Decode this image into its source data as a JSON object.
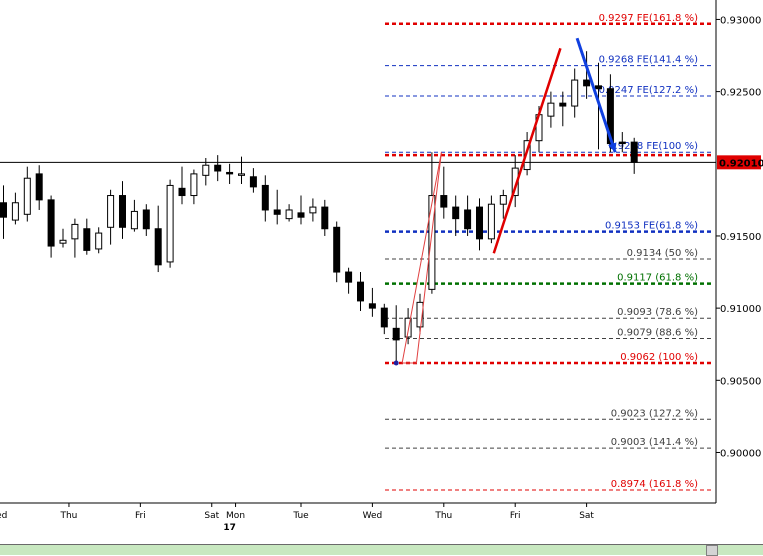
{
  "chart_data": {
    "type": "candlestick",
    "y_axis": {
      "min": 0.8965,
      "max": 0.931,
      "ticks": [
        "0.93000",
        "0.92500",
        "0.91500",
        "0.91000",
        "0.90500",
        "0.90000"
      ],
      "tick_values": [
        0.93,
        0.925,
        0.915,
        0.91,
        0.905,
        0.9
      ],
      "current_price": 0.9201,
      "current_price_label": "0.92010",
      "current_price_color": "#e00000"
    },
    "x_axis": {
      "labels": [
        "Wed",
        "Thu",
        "Fri",
        "Sat",
        "Mon",
        "Tue",
        "Wed",
        "Thu",
        "Fri",
        "Sat"
      ],
      "label_index": [
        -0.5,
        5.5,
        11.5,
        17.5,
        19.5,
        25,
        31,
        37,
        43,
        49
      ],
      "secondary_label": "17",
      "secondary_index": 19
    },
    "candles": [
      {
        "o": 0.9173,
        "h": 0.9185,
        "l": 0.9148,
        "c": 0.9163
      },
      {
        "o": 0.9161,
        "h": 0.918,
        "l": 0.9158,
        "c": 0.9173
      },
      {
        "o": 0.9165,
        "h": 0.9198,
        "l": 0.916,
        "c": 0.919
      },
      {
        "o": 0.9193,
        "h": 0.9199,
        "l": 0.9168,
        "c": 0.9175
      },
      {
        "o": 0.9175,
        "h": 0.9178,
        "l": 0.9135,
        "c": 0.9143
      },
      {
        "o": 0.9145,
        "h": 0.9155,
        "l": 0.9142,
        "c": 0.9147
      },
      {
        "o": 0.9148,
        "h": 0.9162,
        "l": 0.9135,
        "c": 0.9158
      },
      {
        "o": 0.9155,
        "h": 0.9162,
        "l": 0.9137,
        "c": 0.914
      },
      {
        "o": 0.9141,
        "h": 0.9156,
        "l": 0.9138,
        "c": 0.9152
      },
      {
        "o": 0.9156,
        "h": 0.9182,
        "l": 0.9144,
        "c": 0.9178
      },
      {
        "o": 0.9178,
        "h": 0.9188,
        "l": 0.9148,
        "c": 0.9156
      },
      {
        "o": 0.9155,
        "h": 0.9175,
        "l": 0.9153,
        "c": 0.9167
      },
      {
        "o": 0.9168,
        "h": 0.9172,
        "l": 0.915,
        "c": 0.9155
      },
      {
        "o": 0.9155,
        "h": 0.9171,
        "l": 0.9125,
        "c": 0.913
      },
      {
        "o": 0.9132,
        "h": 0.9189,
        "l": 0.9128,
        "c": 0.9185
      },
      {
        "o": 0.9183,
        "h": 0.9198,
        "l": 0.9172,
        "c": 0.9178
      },
      {
        "o": 0.9178,
        "h": 0.9196,
        "l": 0.9172,
        "c": 0.9193
      },
      {
        "o": 0.9192,
        "h": 0.9204,
        "l": 0.9185,
        "c": 0.9199
      },
      {
        "o": 0.9199,
        "h": 0.9206,
        "l": 0.9188,
        "c": 0.9195
      },
      {
        "o": 0.9194,
        "h": 0.92,
        "l": 0.9186,
        "c": 0.9193
      },
      {
        "o": 0.9192,
        "h": 0.9205,
        "l": 0.9186,
        "c": 0.9193
      },
      {
        "o": 0.9191,
        "h": 0.9197,
        "l": 0.918,
        "c": 0.9184
      },
      {
        "o": 0.9185,
        "h": 0.9192,
        "l": 0.916,
        "c": 0.9168
      },
      {
        "o": 0.9168,
        "h": 0.9182,
        "l": 0.9158,
        "c": 0.9165
      },
      {
        "o": 0.9162,
        "h": 0.9172,
        "l": 0.916,
        "c": 0.9168
      },
      {
        "o": 0.9166,
        "h": 0.9178,
        "l": 0.9158,
        "c": 0.9163
      },
      {
        "o": 0.9166,
        "h": 0.9176,
        "l": 0.916,
        "c": 0.917
      },
      {
        "o": 0.917,
        "h": 0.9175,
        "l": 0.915,
        "c": 0.9155
      },
      {
        "o": 0.9156,
        "h": 0.916,
        "l": 0.9118,
        "c": 0.9125
      },
      {
        "o": 0.9125,
        "h": 0.9128,
        "l": 0.911,
        "c": 0.9118
      },
      {
        "o": 0.9118,
        "h": 0.9125,
        "l": 0.9098,
        "c": 0.9105
      },
      {
        "o": 0.9103,
        "h": 0.9114,
        "l": 0.9094,
        "c": 0.91
      },
      {
        "o": 0.91,
        "h": 0.9103,
        "l": 0.9082,
        "c": 0.9087
      },
      {
        "o": 0.9086,
        "h": 0.9102,
        "l": 0.9062,
        "c": 0.9078
      },
      {
        "o": 0.908,
        "h": 0.91,
        "l": 0.9075,
        "c": 0.9093
      },
      {
        "o": 0.9087,
        "h": 0.911,
        "l": 0.9082,
        "c": 0.9104
      },
      {
        "o": 0.9113,
        "h": 0.9208,
        "l": 0.911,
        "c": 0.9178
      },
      {
        "o": 0.9178,
        "h": 0.9198,
        "l": 0.9162,
        "c": 0.917
      },
      {
        "o": 0.917,
        "h": 0.9178,
        "l": 0.915,
        "c": 0.9162
      },
      {
        "o": 0.9168,
        "h": 0.9178,
        "l": 0.915,
        "c": 0.9155
      },
      {
        "o": 0.917,
        "h": 0.9176,
        "l": 0.914,
        "c": 0.9148
      },
      {
        "o": 0.9148,
        "h": 0.9178,
        "l": 0.9145,
        "c": 0.9172
      },
      {
        "o": 0.9172,
        "h": 0.9182,
        "l": 0.9162,
        "c": 0.9178
      },
      {
        "o": 0.9178,
        "h": 0.9206,
        "l": 0.917,
        "c": 0.9197
      },
      {
        "o": 0.9196,
        "h": 0.9222,
        "l": 0.9192,
        "c": 0.9216
      },
      {
        "o": 0.9216,
        "h": 0.924,
        "l": 0.9208,
        "c": 0.9234
      },
      {
        "o": 0.9233,
        "h": 0.925,
        "l": 0.9225,
        "c": 0.9242
      },
      {
        "o": 0.9242,
        "h": 0.925,
        "l": 0.9226,
        "c": 0.924
      },
      {
        "o": 0.924,
        "h": 0.9266,
        "l": 0.9232,
        "c": 0.9258
      },
      {
        "o": 0.9258,
        "h": 0.9278,
        "l": 0.9245,
        "c": 0.9254
      },
      {
        "o": 0.9254,
        "h": 0.927,
        "l": 0.921,
        "c": 0.9252
      },
      {
        "o": 0.9252,
        "h": 0.9262,
        "l": 0.9208,
        "c": 0.9214
      },
      {
        "o": 0.9215,
        "h": 0.9222,
        "l": 0.9208,
        "c": 0.9214
      },
      {
        "o": 0.9215,
        "h": 0.9218,
        "l": 0.9193,
        "c": 0.9201
      }
    ],
    "fib_levels": [
      {
        "price": 0.9297,
        "label": "0.9297 FE(161.8 %)",
        "color": "#e00000",
        "style": "heavy"
      },
      {
        "price": 0.9268,
        "label": "0.9268 FE(141.4 %)",
        "color": "#1030c0",
        "style": "dash"
      },
      {
        "price": 0.9247,
        "label": "0.9247 FE(127.2 %)",
        "color": "#1030c0",
        "style": "dash"
      },
      {
        "price": 0.9208,
        "label": "0.9208 FE(100 %)",
        "color": "#1030c0",
        "style": "dash"
      },
      {
        "price": 0.9206,
        "label": "",
        "color": "#e00000",
        "style": "heavy"
      },
      {
        "price": 0.9153,
        "label": "0.9153 FE(61.8 %)",
        "color": "#1030c0",
        "style": "heavy"
      },
      {
        "price": 0.9134,
        "label": "0.9134 (50 %)",
        "color": "#404040",
        "style": "dash"
      },
      {
        "price": 0.9117,
        "label": "0.9117 (61.8 %)",
        "color": "#007000",
        "style": "heavy"
      },
      {
        "price": 0.9093,
        "label": "0.9093 (78.6 %)",
        "color": "#404040",
        "style": "dash"
      },
      {
        "price": 0.9079,
        "label": "0.9079 (88.6 %)",
        "color": "#404040",
        "style": "dash"
      },
      {
        "price": 0.9062,
        "label": "0.9062 (100 %)",
        "color": "#e00000",
        "style": "heavy"
      },
      {
        "price": 0.9023,
        "label": "0.9023 (127.2 %)",
        "color": "#404040",
        "style": "dash"
      },
      {
        "price": 0.9003,
        "label": "0.9003 (141.4 %)",
        "color": "#404040",
        "style": "dash"
      },
      {
        "price": 0.8974,
        "label": "0.8974 (161.8 %)",
        "color": "#e00000",
        "style": "dash"
      }
    ],
    "annotations": {
      "red_arrow": {
        "from": [
          41.2,
          0.9138
        ],
        "to": [
          46.8,
          0.928
        ],
        "color": "#e00000"
      },
      "blue_arrow": {
        "from": [
          48.2,
          0.9287
        ],
        "to": [
          51.4,
          0.9208
        ],
        "color": "#1040e0"
      },
      "thin_triangle": [
        [
          33.5,
          0.9062
        ],
        [
          36.8,
          0.9208
        ],
        [
          34.7,
          0.9062
        ]
      ],
      "triangle_color": "#e04040",
      "marker": {
        "index": 33,
        "price": 0.9062,
        "color": "#2020a0"
      }
    },
    "grid": false
  }
}
